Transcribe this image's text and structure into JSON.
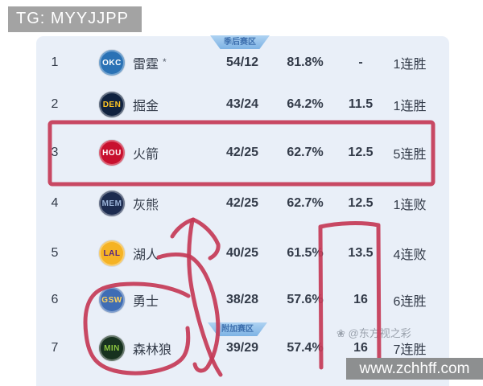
{
  "badge": {
    "text": "TG: MYYJJPP"
  },
  "table": {
    "section_labels": {
      "playoff": "季后赛区",
      "playin": "附加赛区"
    },
    "rows": [
      {
        "rank": "1",
        "abbr": "OKC",
        "name": "雷霆",
        "clinched": "*",
        "record": "54/12",
        "pct": "81.8%",
        "gb": "-",
        "streak": "1连胜",
        "logo_bg": "#2a72b5",
        "logo_fg": "#ffffff"
      },
      {
        "rank": "2",
        "abbr": "DEN",
        "name": "掘金",
        "clinched": "",
        "record": "43/24",
        "pct": "64.2%",
        "gb": "11.5",
        "streak": "1连胜",
        "logo_bg": "#10223f",
        "logo_fg": "#fec524"
      },
      {
        "rank": "3",
        "abbr": "HOU",
        "name": "火箭",
        "clinched": "",
        "record": "42/25",
        "pct": "62.7%",
        "gb": "12.5",
        "streak": "5连胜",
        "logo_bg": "#c8102e",
        "logo_fg": "#ffffff"
      },
      {
        "rank": "4",
        "abbr": "MEM",
        "name": "灰熊",
        "clinched": "",
        "record": "42/25",
        "pct": "62.7%",
        "gb": "12.5",
        "streak": "1连败",
        "logo_bg": "#1c2b4f",
        "logo_fg": "#9bb3d8"
      },
      {
        "rank": "5",
        "abbr": "LAL",
        "name": "湖人",
        "clinched": "",
        "record": "40/25",
        "pct": "61.5%",
        "gb": "13.5",
        "streak": "4连败",
        "logo_bg": "#f5b324",
        "logo_fg": "#552583"
      },
      {
        "rank": "6",
        "abbr": "GSW",
        "name": "勇士",
        "clinched": "",
        "record": "38/28",
        "pct": "57.6%",
        "gb": "16",
        "streak": "6连胜",
        "logo_bg": "#3f6db4",
        "logo_fg": "#ffd35c"
      },
      {
        "rank": "7",
        "abbr": "MIN",
        "name": "森林狼",
        "clinched": "",
        "record": "39/29",
        "pct": "57.4%",
        "gb": "16",
        "streak": "7连胜",
        "logo_bg": "#17321f",
        "logo_fg": "#8bc540"
      }
    ]
  },
  "watermark_social": {
    "icon": "❀",
    "text": "@东方视之彩"
  },
  "watermark_site": {
    "text": "www.zchhff.com"
  },
  "annotations": {
    "pen_color": "#c43a56"
  }
}
